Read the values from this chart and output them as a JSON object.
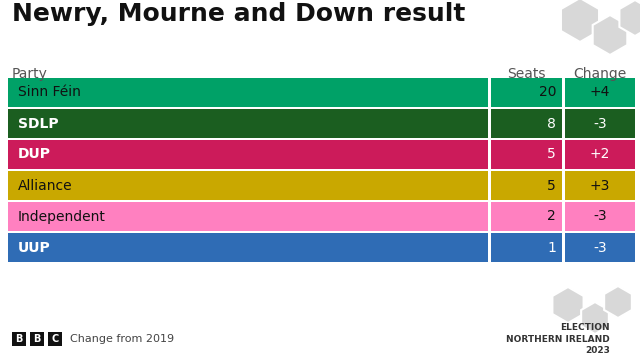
{
  "title": "Newry, Mourne and Down result",
  "col_party": "Party",
  "col_seats": "Seats",
  "col_change": "Change",
  "parties": [
    "Sinn Féin",
    "SDLP",
    "DUP",
    "Alliance",
    "Independent",
    "UUP"
  ],
  "seats": [
    20,
    8,
    5,
    5,
    2,
    1
  ],
  "changes": [
    "+4",
    "-3",
    "+2",
    "+3",
    "-3",
    "-3"
  ],
  "bar_colors": [
    "#00A167",
    "#1B5E20",
    "#CC1B5A",
    "#C9A800",
    "#FF80C0",
    "#2F6CB5"
  ],
  "text_dark": [
    "#111111",
    "#ffffff",
    "#ffffff",
    "#111111",
    "#111111",
    "#ffffff"
  ],
  "background_color": "#ffffff",
  "footer_text": "Change from 2019",
  "hex_color": "#d8d8d8",
  "title_fontsize": 18,
  "header_fontsize": 10,
  "row_fontsize": 10
}
